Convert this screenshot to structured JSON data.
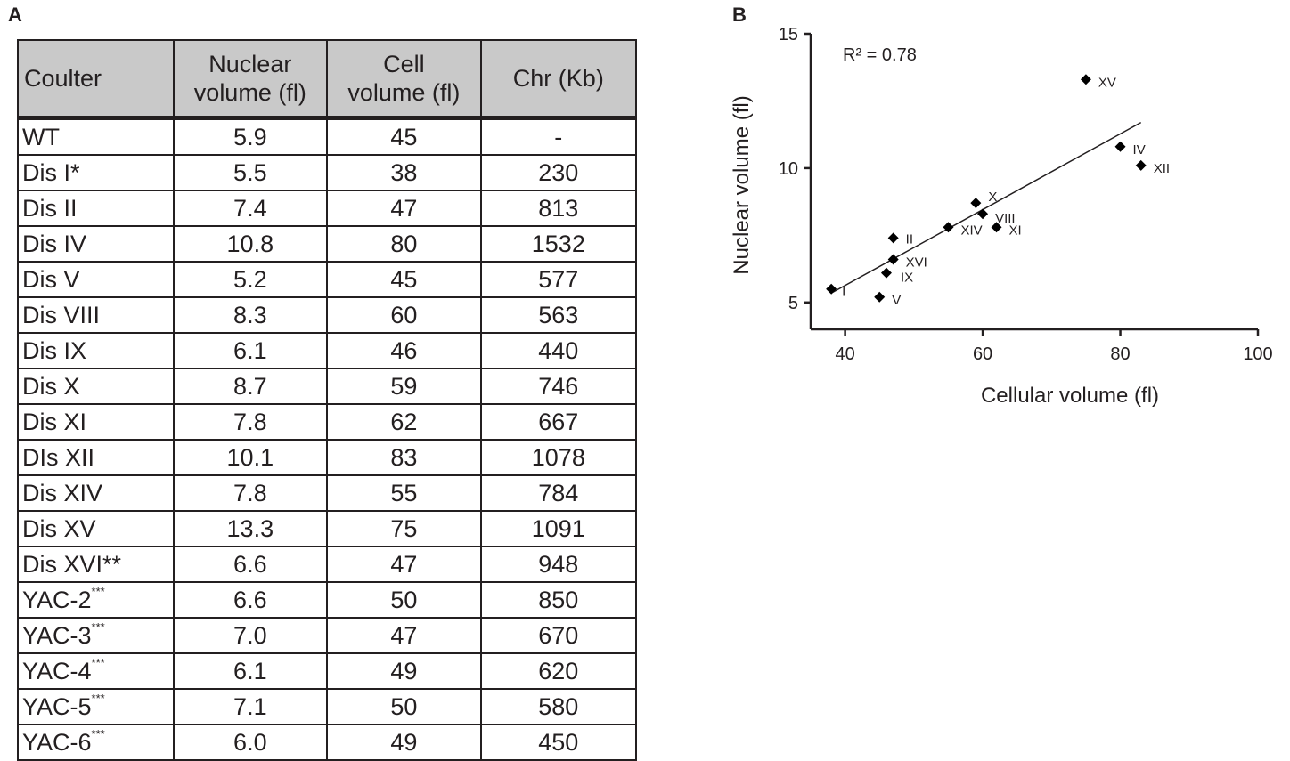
{
  "panel_a": {
    "label": "A",
    "headers": {
      "col1": "Coulter",
      "col2_line1": "Nuclear",
      "col2_line2": "volume (fl)",
      "col3_line1": "Cell",
      "col3_line2": "volume (fl)",
      "col4": "Chr (Kb)"
    },
    "rows": [
      {
        "name": "WT",
        "sup": "",
        "nuclear": "5.9",
        "cell": "45",
        "chr": "-"
      },
      {
        "name": "Dis I*",
        "sup": "",
        "nuclear": "5.5",
        "cell": "38",
        "chr": "230"
      },
      {
        "name": "Dis II",
        "sup": "",
        "nuclear": "7.4",
        "cell": "47",
        "chr": "813"
      },
      {
        "name": "Dis IV",
        "sup": "",
        "nuclear": "10.8",
        "cell": "80",
        "chr": "1532"
      },
      {
        "name": "Dis V",
        "sup": "",
        "nuclear": "5.2",
        "cell": "45",
        "chr": "577"
      },
      {
        "name": "Dis VIII",
        "sup": "",
        "nuclear": "8.3",
        "cell": "60",
        "chr": "563"
      },
      {
        "name": "Dis IX",
        "sup": "",
        "nuclear": "6.1",
        "cell": "46",
        "chr": "440"
      },
      {
        "name": "Dis X",
        "sup": "",
        "nuclear": "8.7",
        "cell": "59",
        "chr": "746"
      },
      {
        "name": "Dis XI",
        "sup": "",
        "nuclear": "7.8",
        "cell": "62",
        "chr": "667"
      },
      {
        "name": "DIs XII",
        "sup": "",
        "nuclear": "10.1",
        "cell": "83",
        "chr": "1078"
      },
      {
        "name": "Dis XIV",
        "sup": "",
        "nuclear": "7.8",
        "cell": "55",
        "chr": "784"
      },
      {
        "name": "Dis XV",
        "sup": "",
        "nuclear": "13.3",
        "cell": "75",
        "chr": "1091"
      },
      {
        "name": "Dis XVI**",
        "sup": "",
        "nuclear": "6.6",
        "cell": "47",
        "chr": "948"
      },
      {
        "name": "YAC-2",
        "sup": "***",
        "nuclear": "6.6",
        "cell": "50",
        "chr": "850"
      },
      {
        "name": "YAC-3",
        "sup": "***",
        "nuclear": "7.0",
        "cell": "47",
        "chr": "670"
      },
      {
        "name": "YAC-4",
        "sup": "***",
        "nuclear": "6.1",
        "cell": "49",
        "chr": "620"
      },
      {
        "name": "YAC-5",
        "sup": "***",
        "nuclear": "7.1",
        "cell": "50",
        "chr": "580"
      },
      {
        "name": "YAC-6",
        "sup": "***",
        "nuclear": "6.0",
        "cell": "49",
        "chr": "450"
      }
    ]
  },
  "panel_b": {
    "label": "B",
    "r2_label": "R² = 0.78"
  },
  "chart_data": {
    "type": "scatter",
    "title": "",
    "xlabel": "Cellular volume (fl)",
    "ylabel": "Nuclear volume (fl)",
    "xlim": [
      35,
      100
    ],
    "ylim": [
      4,
      15
    ],
    "xticks": [
      40,
      60,
      80,
      100
    ],
    "yticks": [
      5,
      10,
      15
    ],
    "grid": false,
    "marker": "diamond",
    "annotation": "R² = 0.78",
    "trendline": {
      "x": [
        38,
        83
      ],
      "y": [
        5.35,
        11.7
      ]
    },
    "points": [
      {
        "label": "I",
        "x": 38,
        "y": 5.5
      },
      {
        "label": "II",
        "x": 47,
        "y": 7.4
      },
      {
        "label": "IV",
        "x": 80,
        "y": 10.8
      },
      {
        "label": "V",
        "x": 45,
        "y": 5.2
      },
      {
        "label": "VIII",
        "x": 60,
        "y": 8.3
      },
      {
        "label": "IX",
        "x": 46,
        "y": 6.1
      },
      {
        "label": "X",
        "x": 59,
        "y": 8.7
      },
      {
        "label": "XI",
        "x": 62,
        "y": 7.8
      },
      {
        "label": "XII",
        "x": 83,
        "y": 10.1
      },
      {
        "label": "XIV",
        "x": 55,
        "y": 7.8
      },
      {
        "label": "XV",
        "x": 75,
        "y": 13.3
      },
      {
        "label": "XVI",
        "x": 47,
        "y": 6.6
      }
    ]
  }
}
